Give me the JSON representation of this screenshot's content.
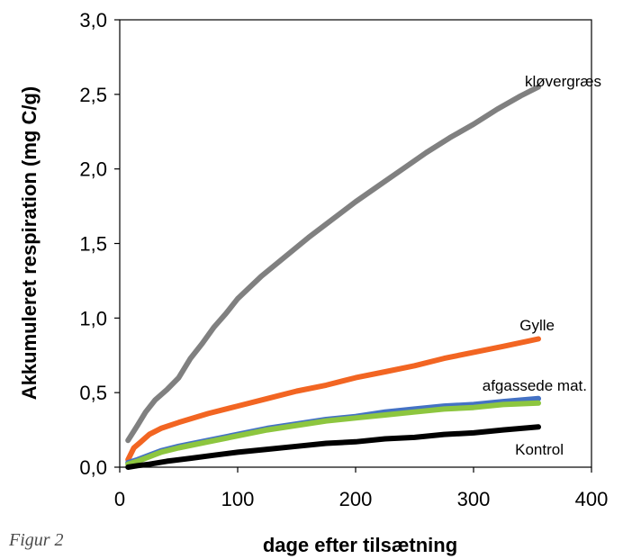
{
  "caption": "Figur 2",
  "chart_data": {
    "type": "line",
    "xlabel": "dage efter tilsætning",
    "ylabel": "Akkumuleret respiration (mg C/g)",
    "xlim": [
      0,
      400
    ],
    "ylim": [
      0,
      3.0
    ],
    "x_ticks": [
      "0",
      "100",
      "200",
      "300",
      "400"
    ],
    "y_ticks": [
      "0,0",
      "0,5",
      "1,0",
      "1,5",
      "2,0",
      "2,5",
      "3,0"
    ],
    "grid": false,
    "legend": "inline labels at line ends",
    "series": [
      {
        "name": "kløvergræs",
        "color": "#808080",
        "x": [
          7,
          15,
          22,
          30,
          40,
          50,
          60,
          70,
          80,
          90,
          100,
          120,
          140,
          160,
          180,
          200,
          220,
          240,
          260,
          280,
          300,
          320,
          340,
          355
        ],
        "y": [
          0.18,
          0.28,
          0.37,
          0.45,
          0.52,
          0.6,
          0.73,
          0.83,
          0.94,
          1.03,
          1.13,
          1.28,
          1.41,
          1.54,
          1.66,
          1.78,
          1.89,
          2.0,
          2.11,
          2.21,
          2.3,
          2.4,
          2.49,
          2.55
        ]
      },
      {
        "name": "Gylle",
        "color": "#f26522",
        "x": [
          7,
          12,
          18,
          25,
          35,
          50,
          75,
          100,
          125,
          150,
          175,
          200,
          225,
          250,
          275,
          300,
          325,
          355
        ],
        "y": [
          0.05,
          0.13,
          0.17,
          0.22,
          0.26,
          0.3,
          0.36,
          0.41,
          0.46,
          0.51,
          0.55,
          0.6,
          0.64,
          0.68,
          0.73,
          0.77,
          0.81,
          0.86
        ]
      },
      {
        "name": "afgassede mat.",
        "color": "#4472c4",
        "x": [
          7,
          15,
          25,
          35,
          50,
          75,
          100,
          125,
          150,
          175,
          200,
          225,
          250,
          275,
          300,
          325,
          355
        ],
        "y": [
          0.03,
          0.05,
          0.08,
          0.11,
          0.14,
          0.18,
          0.22,
          0.26,
          0.29,
          0.32,
          0.34,
          0.37,
          0.39,
          0.41,
          0.42,
          0.44,
          0.46
        ]
      },
      {
        "name": "",
        "color": "#8dc63f",
        "x": [
          7,
          15,
          25,
          35,
          50,
          75,
          100,
          125,
          150,
          175,
          200,
          225,
          250,
          275,
          300,
          325,
          355
        ],
        "y": [
          0.02,
          0.04,
          0.07,
          0.1,
          0.13,
          0.17,
          0.21,
          0.25,
          0.28,
          0.31,
          0.33,
          0.35,
          0.37,
          0.39,
          0.4,
          0.42,
          0.43
        ]
      },
      {
        "name": "Kontrol",
        "color": "#000000",
        "x": [
          7,
          15,
          25,
          40,
          60,
          80,
          100,
          125,
          150,
          175,
          200,
          225,
          250,
          275,
          300,
          325,
          355
        ],
        "y": [
          0.0,
          0.01,
          0.02,
          0.04,
          0.06,
          0.08,
          0.1,
          0.12,
          0.14,
          0.16,
          0.17,
          0.19,
          0.2,
          0.22,
          0.23,
          0.25,
          0.27
        ]
      }
    ]
  }
}
